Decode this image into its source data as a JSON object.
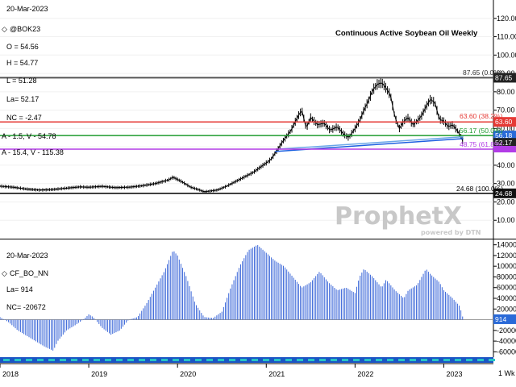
{
  "colors": {
    "price": "#000000",
    "ma_short": "#1e5fe0",
    "ma_long": "#6aa6e8",
    "cot": "#3a66d8",
    "r38": "#e53935",
    "r50": "#1f9c2f",
    "r62": "#b23ce6",
    "hl": "#555555",
    "bottom_bar": "#1a55c4",
    "bottom_bar_dots": "#27c4c4"
  },
  "price_panel": {
    "date": "20-Mar-2023",
    "symbol": "@BOK23",
    "open": "O = 54.56",
    "high": "H = 54.77",
    "low": "L = 51.28",
    "last": "La= 52.17",
    "net_change": "NC = -2.47",
    "ma1": "A - 1.5, V - 54.78",
    "ma2": "A - 15.4, V - 115.38",
    "title": "Continuous Active Soybean Oil Weekly",
    "levels": {
      "high_line": "87.65 (0.0%)",
      "r38": "63.60 (38.2%)",
      "r50": "56.17 (50.0%)",
      "r62": "48.75 (61.8%)",
      "low_line": "24.68 (100.0%)"
    },
    "tags": {
      "high": "87.65",
      "r38": "63.60",
      "r50": "56.18",
      "last": "52.17",
      "low": "24.68"
    },
    "watermark": "ProphetX",
    "watermark_sub": "powered by DTN"
  },
  "cot_panel": {
    "date": "20-Mar-2023",
    "symbol": "CF_BO_NN",
    "last": "La= 914",
    "net_change": "NC= -20672",
    "tag": "914"
  },
  "x_axis": {
    "labels": [
      "2018",
      "2019",
      "2020",
      "2021",
      "2022",
      "2023"
    ],
    "wk_label": "1 Wk"
  },
  "chart_data": [
    {
      "type": "line",
      "title": "Continuous Active Soybean Oil Weekly",
      "ylim": [
        0,
        130
      ],
      "y_ticks": [
        "10.00",
        "20.00",
        "30.00",
        "40.00",
        "50.00",
        "60.00",
        "70.00",
        "80.00",
        "90.00",
        "100.00",
        "110.00",
        "120.00"
      ],
      "x_range": [
        2018.0,
        2023.45
      ],
      "series": [
        {
          "values": [
            [
              2018.0,
              28.6
            ],
            [
              2018.15,
              28.0
            ],
            [
              2018.3,
              27.0
            ],
            [
              2018.45,
              26.5
            ],
            [
              2018.6,
              26.8
            ],
            [
              2018.75,
              27.5
            ],
            [
              2018.9,
              28.2
            ],
            [
              2019.0,
              28.0
            ],
            [
              2019.15,
              28.5
            ],
            [
              2019.3,
              27.8
            ],
            [
              2019.45,
              28.0
            ],
            [
              2019.6,
              28.8
            ],
            [
              2019.75,
              30.0
            ],
            [
              2019.9,
              32.0
            ],
            [
              2019.95,
              33.5
            ],
            [
              2020.05,
              31.0
            ],
            [
              2020.15,
              28.0
            ],
            [
              2020.25,
              26.5
            ],
            [
              2020.3,
              25.5
            ],
            [
              2020.45,
              26.5
            ],
            [
              2020.55,
              28.5
            ],
            [
              2020.65,
              31.0
            ],
            [
              2020.75,
              33.5
            ],
            [
              2020.85,
              36.0
            ],
            [
              2020.95,
              39.5
            ],
            [
              2021.05,
              43.0
            ],
            [
              2021.12,
              48.0
            ],
            [
              2021.2,
              54.0
            ],
            [
              2021.28,
              59.0
            ],
            [
              2021.35,
              66.0
            ],
            [
              2021.4,
              70.0
            ],
            [
              2021.45,
              60.0
            ],
            [
              2021.5,
              66.0
            ],
            [
              2021.58,
              62.0
            ],
            [
              2021.65,
              63.0
            ],
            [
              2021.72,
              59.0
            ],
            [
              2021.8,
              61.0
            ],
            [
              2021.87,
              57.0
            ],
            [
              2021.93,
              55.0
            ],
            [
              2022.0,
              60.0
            ],
            [
              2022.05,
              64.0
            ],
            [
              2022.1,
              70.0
            ],
            [
              2022.15,
              75.0
            ],
            [
              2022.2,
              81.0
            ],
            [
              2022.25,
              84.0
            ],
            [
              2022.3,
              85.0
            ],
            [
              2022.35,
              82.0
            ],
            [
              2022.4,
              78.0
            ],
            [
              2022.45,
              66.0
            ],
            [
              2022.5,
              60.0
            ],
            [
              2022.55,
              64.0
            ],
            [
              2022.6,
              66.0
            ],
            [
              2022.65,
              62.0
            ],
            [
              2022.7,
              64.0
            ],
            [
              2022.75,
              67.0
            ],
            [
              2022.8,
              72.0
            ],
            [
              2022.85,
              76.0
            ],
            [
              2022.9,
              74.0
            ],
            [
              2022.95,
              65.0
            ],
            [
              2023.0,
              64.0
            ],
            [
              2023.05,
              61.0
            ],
            [
              2023.1,
              62.0
            ],
            [
              2023.15,
              59.0
            ],
            [
              2023.2,
              55.0
            ],
            [
              2023.22,
              52.17
            ]
          ]
        },
        {
          "name": "A - 1.5, V - 54.78",
          "values": [
            [
              2021.1,
              47.5
            ],
            [
              2023.22,
              54.5
            ]
          ]
        },
        {
          "name": "A - 15.4, V - 115.38",
          "values": [
            [
              2021.15,
              48.8
            ],
            [
              2023.22,
              55.5
            ]
          ]
        }
      ],
      "fib_levels": [
        87.65,
        63.6,
        56.17,
        48.75,
        24.68
      ]
    },
    {
      "type": "bar",
      "title": "CF_BO_NN",
      "ylim": [
        -70000,
        150000
      ],
      "y_ticks": [
        "-60000",
        "-40000",
        "-20000",
        "0",
        "20000",
        "40000",
        "60000",
        "80000",
        "100000",
        "120000",
        "140000"
      ],
      "x_range": [
        2018.0,
        2023.45
      ],
      "anchors": [
        [
          2018.0,
          5000
        ],
        [
          2018.1,
          -5000
        ],
        [
          2018.2,
          -20000
        ],
        [
          2018.35,
          -35000
        ],
        [
          2018.5,
          -50000
        ],
        [
          2018.6,
          -58000
        ],
        [
          2018.65,
          -40000
        ],
        [
          2018.75,
          -20000
        ],
        [
          2018.85,
          -10000
        ],
        [
          2018.95,
          2000
        ],
        [
          2019.0,
          10000
        ],
        [
          2019.05,
          5000
        ],
        [
          2019.15,
          -15000
        ],
        [
          2019.25,
          -28000
        ],
        [
          2019.35,
          -20000
        ],
        [
          2019.45,
          0
        ],
        [
          2019.55,
          5000
        ],
        [
          2019.65,
          30000
        ],
        [
          2019.75,
          60000
        ],
        [
          2019.85,
          90000
        ],
        [
          2019.95,
          130000
        ],
        [
          2020.0,
          120000
        ],
        [
          2020.1,
          80000
        ],
        [
          2020.2,
          30000
        ],
        [
          2020.3,
          5000
        ],
        [
          2020.4,
          3000
        ],
        [
          2020.5,
          15000
        ],
        [
          2020.6,
          60000
        ],
        [
          2020.7,
          100000
        ],
        [
          2020.8,
          130000
        ],
        [
          2020.9,
          140000
        ],
        [
          2021.0,
          125000
        ],
        [
          2021.1,
          110000
        ],
        [
          2021.2,
          100000
        ],
        [
          2021.3,
          80000
        ],
        [
          2021.4,
          60000
        ],
        [
          2021.5,
          70000
        ],
        [
          2021.6,
          90000
        ],
        [
          2021.7,
          70000
        ],
        [
          2021.8,
          55000
        ],
        [
          2021.9,
          60000
        ],
        [
          2022.0,
          50000
        ],
        [
          2022.05,
          80000
        ],
        [
          2022.1,
          95000
        ],
        [
          2022.2,
          80000
        ],
        [
          2022.3,
          60000
        ],
        [
          2022.35,
          75000
        ],
        [
          2022.45,
          55000
        ],
        [
          2022.55,
          40000
        ],
        [
          2022.6,
          55000
        ],
        [
          2022.7,
          65000
        ],
        [
          2022.8,
          95000
        ],
        [
          2022.85,
          85000
        ],
        [
          2022.95,
          70000
        ],
        [
          2023.0,
          55000
        ],
        [
          2023.1,
          40000
        ],
        [
          2023.18,
          25000
        ],
        [
          2023.22,
          914
        ]
      ]
    }
  ]
}
